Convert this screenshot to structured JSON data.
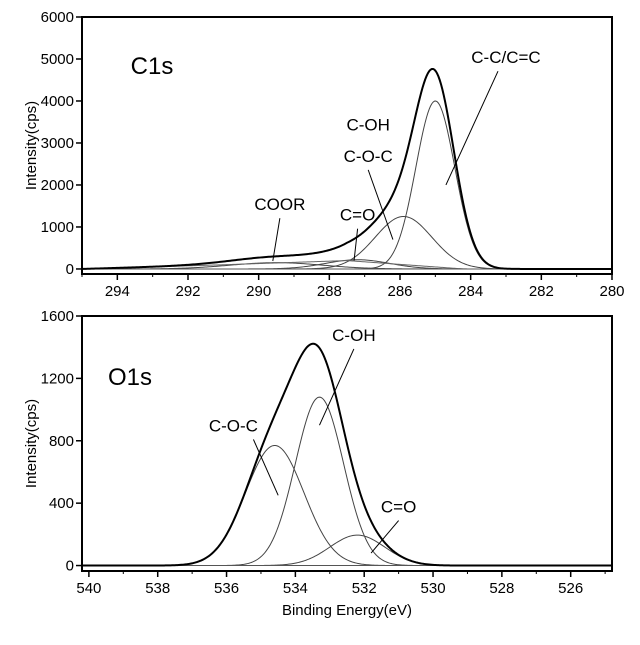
{
  "chart_data": [
    {
      "type": "line",
      "panel_label": "C1s",
      "xlabel": "",
      "ylabel": "Intensity(cps)",
      "x_reversed": true,
      "xlim": [
        295,
        280
      ],
      "ylim": [
        -120,
        6000
      ],
      "xticks": [
        294,
        292,
        290,
        288,
        286,
        284,
        282,
        280
      ],
      "yticks": [
        0,
        1000,
        2000,
        3000,
        4000,
        5000,
        6000
      ],
      "grid": false,
      "components": [
        {
          "name": "C-C/C=C",
          "center": 285.0,
          "height": 4000,
          "sigma": 0.55
        },
        {
          "name": "C-OH C-O-C",
          "center": 285.9,
          "height": 1250,
          "sigma": 0.8
        },
        {
          "name": "C=O",
          "center": 287.2,
          "height": 220,
          "sigma": 0.9
        },
        {
          "name": "COOR",
          "center": 289.5,
          "height": 150,
          "sigma": 1.3
        }
      ],
      "envelope": {
        "name": "fit envelope",
        "background": [
          {
            "x": 295,
            "y": 0
          },
          {
            "x": 291,
            "y": 100
          },
          {
            "x": 287.5,
            "y": 200
          },
          {
            "x": 284.2,
            "y": 0
          }
        ]
      },
      "annotations": [
        {
          "text": "COOR",
          "label_x": 289.4,
          "label_y": 1400,
          "target_x": 289.6,
          "target_y": 190
        },
        {
          "text": "C=O",
          "label_x": 287.2,
          "label_y": 1150,
          "target_x": 287.3,
          "target_y": 200
        },
        {
          "text": "C-OH",
          "label_x": 286.9,
          "label_y": 3300,
          "target_x": 0,
          "target_y": 0
        },
        {
          "text": "C-O-C",
          "label_x": 286.9,
          "label_y": 2550,
          "target_x": 286.2,
          "target_y": 700
        },
        {
          "text": "C-C/C=C",
          "label_x": 283.0,
          "label_y": 4900,
          "target_x": 284.7,
          "target_y": 2000
        }
      ]
    },
    {
      "type": "line",
      "panel_label": "O1s",
      "xlabel": "Binding Energy(eV)",
      "ylabel": "Intensity(cps)",
      "x_reversed": true,
      "xlim": [
        540.2,
        524.8
      ],
      "ylim": [
        -35,
        1600
      ],
      "xticks": [
        540,
        538,
        536,
        534,
        532,
        530,
        528,
        526
      ],
      "yticks": [
        0,
        400,
        800,
        1200,
        1600
      ],
      "grid": false,
      "components": [
        {
          "name": "C-O-C",
          "center": 534.6,
          "height": 770,
          "sigma": 0.85
        },
        {
          "name": "C-OH",
          "center": 533.3,
          "height": 1080,
          "sigma": 0.7
        },
        {
          "name": "C=O",
          "center": 532.2,
          "height": 195,
          "sigma": 0.8
        }
      ],
      "envelope": {
        "name": "fit envelope"
      },
      "annotations": [
        {
          "text": "C-O-C",
          "label_x": 535.8,
          "label_y": 860,
          "target_x": 534.5,
          "target_y": 450
        },
        {
          "text": "C-OH",
          "label_x": 532.3,
          "label_y": 1440,
          "target_x": 533.3,
          "target_y": 900
        },
        {
          "text": "C=O",
          "label_x": 531.0,
          "label_y": 340,
          "target_x": 531.8,
          "target_y": 80
        }
      ]
    }
  ]
}
